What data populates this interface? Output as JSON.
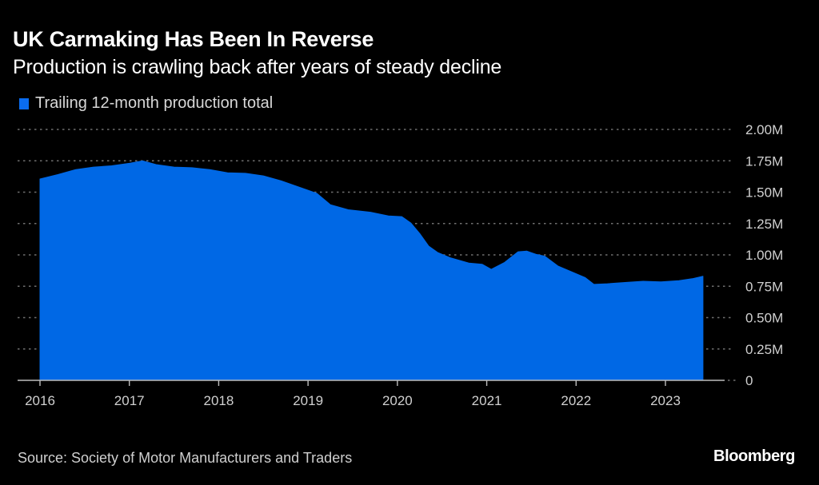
{
  "header": {
    "title": "UK Carmaking Has Been In Reverse",
    "subtitle": "Production is crawling back after years of steady decline"
  },
  "footer": {
    "source": "Source: Society of Motor Manufacturers and Traders",
    "brand": "Bloomberg"
  },
  "colors": {
    "background": "#000000",
    "series_fill": "#0068e5",
    "legend_swatch": "#0a6cf0",
    "gridline": "#6f6f6f"
  },
  "chart_data": {
    "type": "area",
    "title": "UK Carmaking Has Been In Reverse",
    "subtitle": "Production is crawling back after years of steady decline",
    "xlabel": "",
    "ylabel": "",
    "legend": {
      "placement": "top-left",
      "entries": [
        "Trailing 12-month production total"
      ]
    },
    "grid": true,
    "y_axis_side": "right",
    "xlim": [
      2015.75,
      2023.75
    ],
    "ylim": [
      0,
      2000000
    ],
    "x_ticks": [
      2016,
      2017,
      2018,
      2019,
      2020,
      2021,
      2022,
      2023
    ],
    "x_tick_labels": [
      "2016",
      "2017",
      "2018",
      "2019",
      "2020",
      "2021",
      "2022",
      "2023"
    ],
    "y_ticks": [
      0,
      250000,
      500000,
      750000,
      1000000,
      1250000,
      1500000,
      1750000,
      2000000
    ],
    "y_tick_labels": [
      "0",
      "0.25M",
      "0.50M",
      "0.75M",
      "1.00M",
      "1.25M",
      "1.50M",
      "1.75M",
      "2.00M"
    ],
    "series": [
      {
        "name": "Trailing 12-month production total",
        "x": [
          2016.0,
          2016.2,
          2016.4,
          2016.6,
          2016.8,
          2017.0,
          2017.15,
          2017.3,
          2017.5,
          2017.7,
          2017.9,
          2018.1,
          2018.3,
          2018.5,
          2018.7,
          2018.9,
          2019.1,
          2019.25,
          2019.45,
          2019.7,
          2019.9,
          2020.05,
          2020.15,
          2020.25,
          2020.35,
          2020.45,
          2020.6,
          2020.8,
          2020.95,
          2021.05,
          2021.2,
          2021.35,
          2021.45,
          2021.55,
          2021.65,
          2021.8,
          2021.95,
          2022.1,
          2022.2,
          2022.35,
          2022.55,
          2022.75,
          2022.95,
          2023.15,
          2023.3,
          2023.42
        ],
        "values": [
          1605000,
          1640000,
          1680000,
          1700000,
          1710000,
          1730000,
          1750000,
          1720000,
          1700000,
          1695000,
          1680000,
          1655000,
          1650000,
          1630000,
          1590000,
          1540000,
          1490000,
          1400000,
          1360000,
          1340000,
          1310000,
          1305000,
          1255000,
          1170000,
          1070000,
          1020000,
          975000,
          935000,
          925000,
          885000,
          940000,
          1025000,
          1030000,
          1005000,
          990000,
          910000,
          865000,
          820000,
          765000,
          770000,
          780000,
          790000,
          785000,
          795000,
          810000,
          830000
        ]
      }
    ]
  }
}
